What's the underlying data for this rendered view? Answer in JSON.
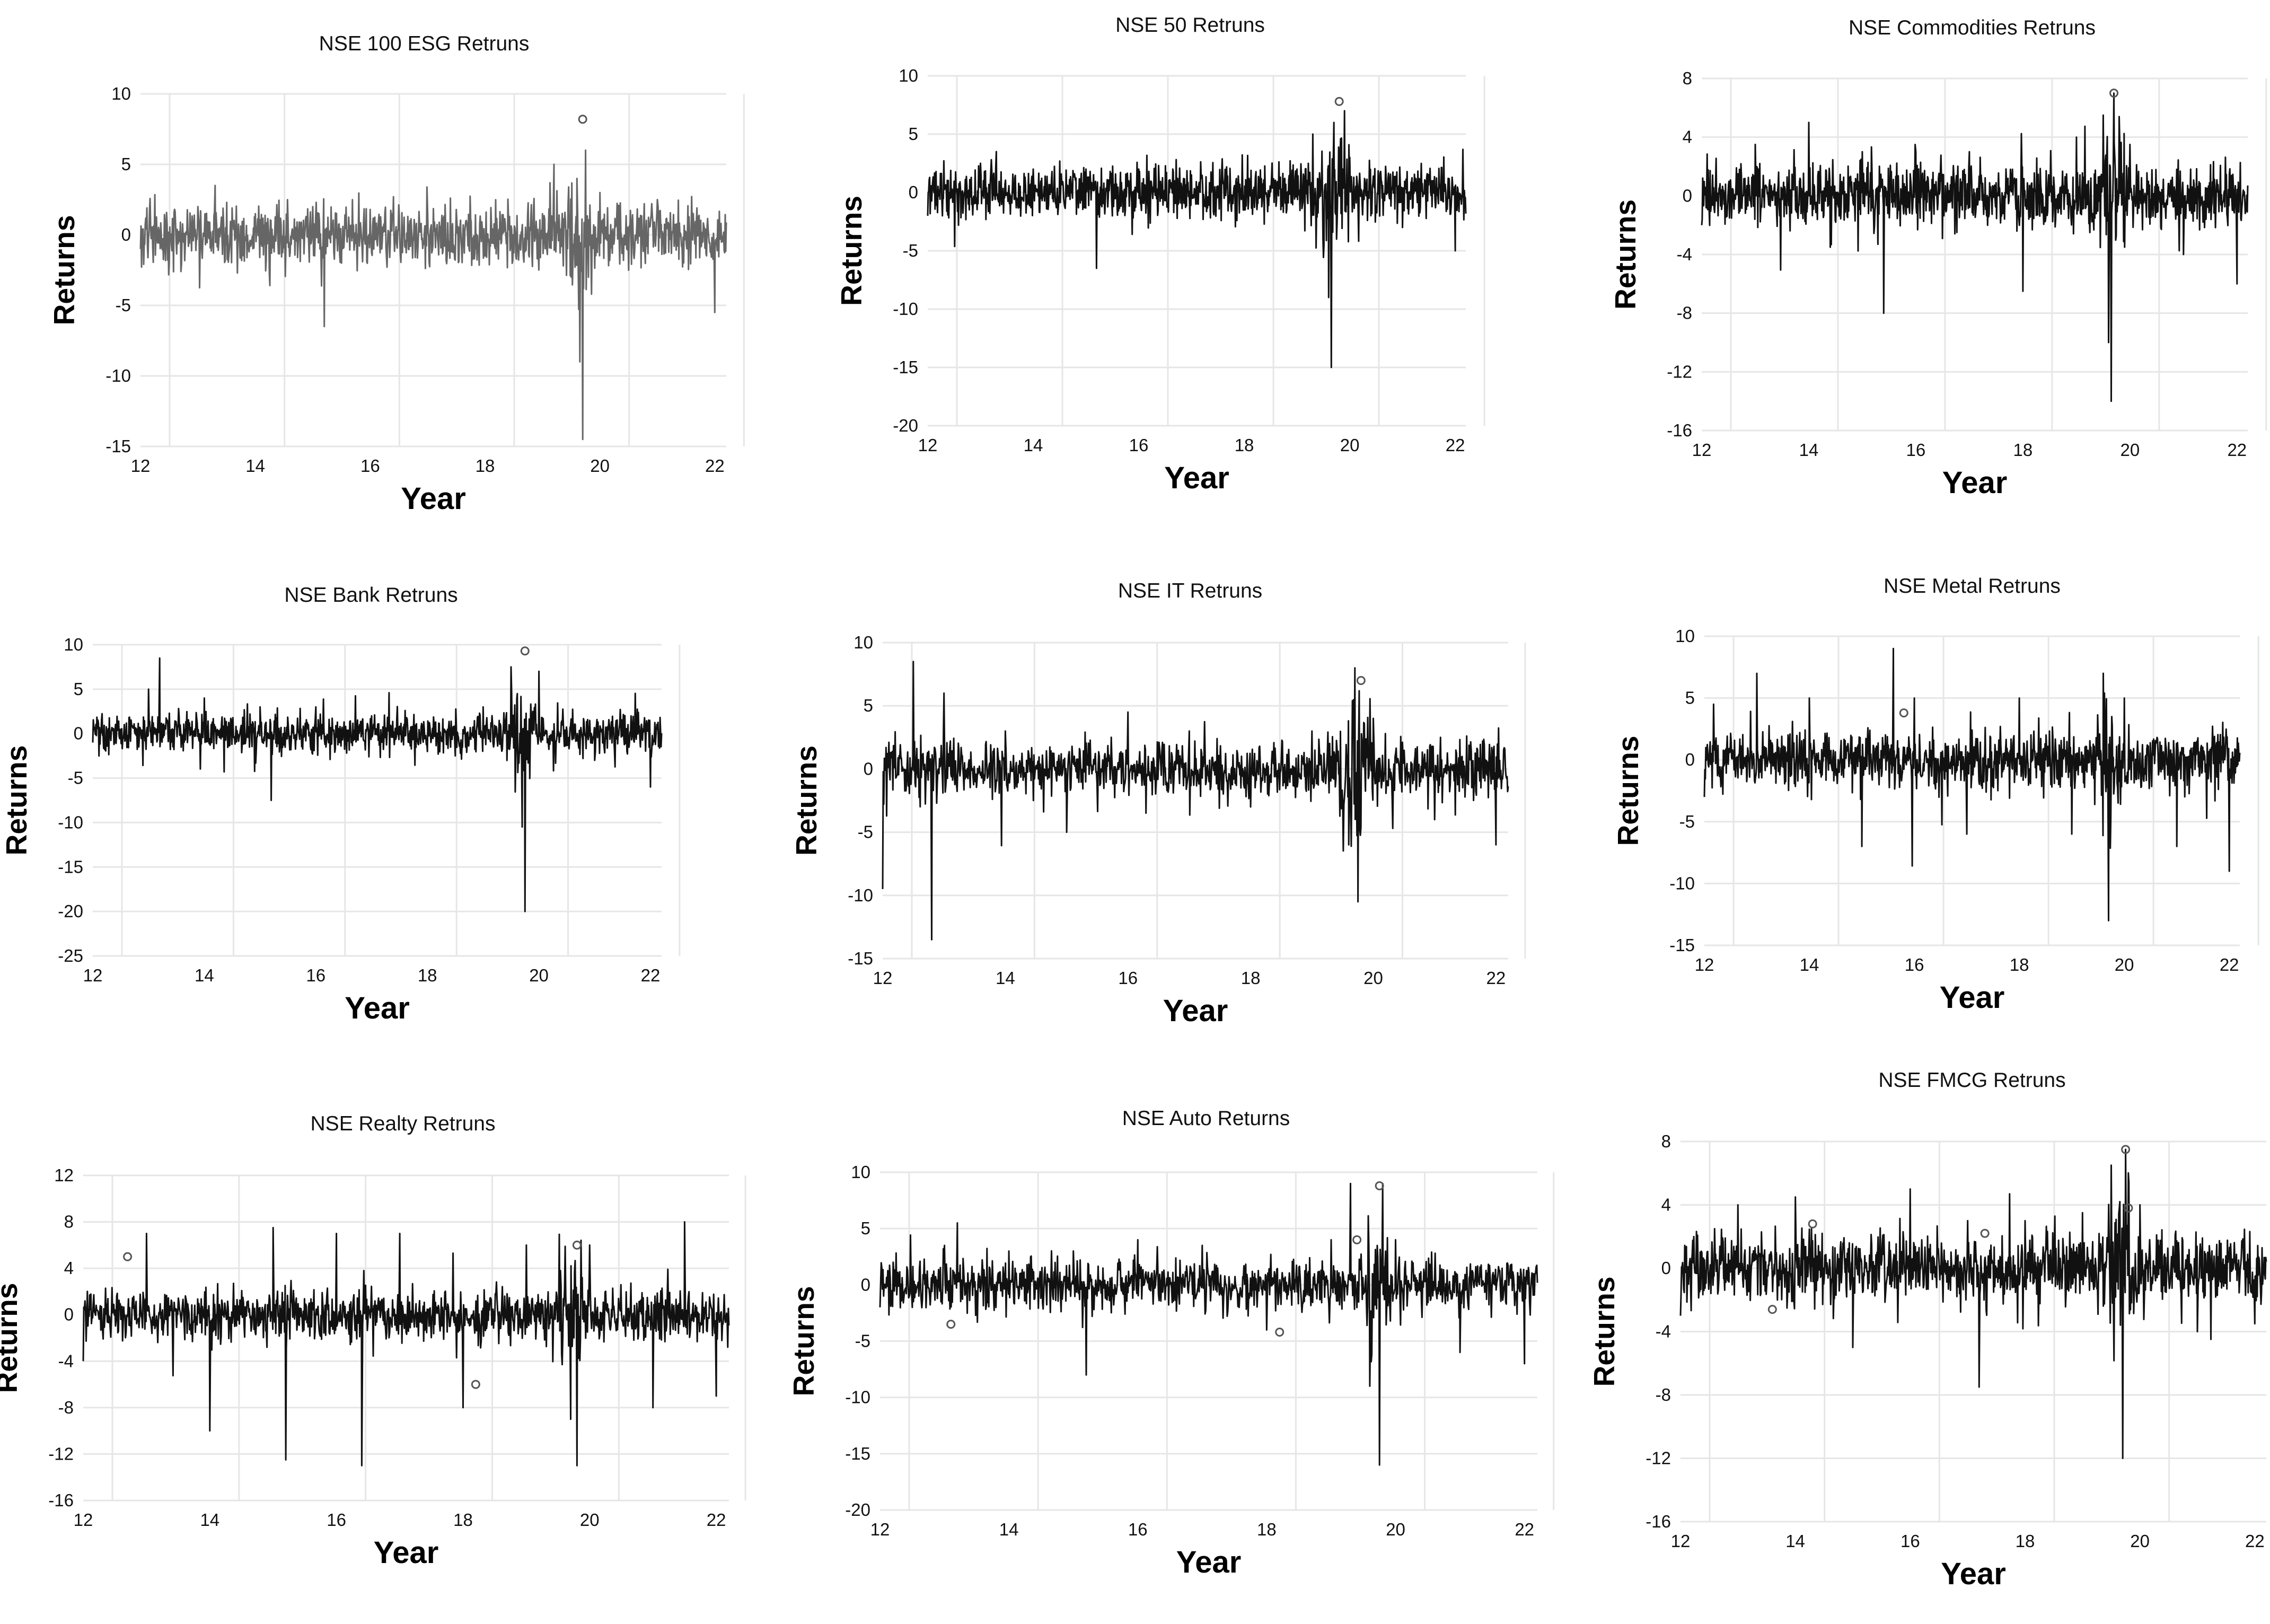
{
  "chart_data": [
    {
      "type": "line",
      "title": "NSE 100 ESG Retruns",
      "xlabel": "Year",
      "ylabel": "Returns",
      "x_ticks": [
        "12",
        "14",
        "16",
        "18",
        "20",
        "22"
      ],
      "y_ticks": [
        "10",
        "5",
        "0",
        "-5",
        "-10",
        "-15"
      ],
      "xlim": [
        12,
        22.2
      ],
      "ylim": [
        -15,
        10
      ],
      "grid": true,
      "line_color": "#666666",
      "series": [
        {
          "x": [
            12.0,
            13.0,
            13.3,
            14.0,
            15.0,
            15.2,
            15.5,
            16.0,
            17.0,
            18.0,
            19.0,
            19.2,
            19.5,
            19.6,
            19.65,
            19.7,
            19.75,
            19.8,
            20.0,
            20.5,
            21.0,
            22.0
          ],
          "y": [
            -1,
            2,
            3.5,
            1.5,
            2,
            -6.5,
            -2,
            1.8,
            1.5,
            -1.5,
            1.5,
            5,
            -3,
            4,
            -9,
            -14.5,
            6,
            -3,
            3,
            -2.5,
            2.5,
            -5.5
          ],
          "markers": [
            {
              "x": 19.7,
              "y": 8.2
            }
          ]
        }
      ]
    },
    {
      "type": "line",
      "title": "NSE 50 Retruns",
      "xlabel": "Year",
      "ylabel": "Returns",
      "x_ticks": [
        "12",
        "14",
        "16",
        "18",
        "20",
        "22"
      ],
      "y_ticks": [
        "10",
        "5",
        "0",
        "-5",
        "-10",
        "-15",
        "-20"
      ],
      "xlim": [
        12,
        22.2
      ],
      "ylim": [
        -20,
        10
      ],
      "grid": true,
      "line_color": "#111111",
      "series": [
        {
          "x": [
            12.0,
            13.0,
            13.3,
            14.0,
            15.0,
            15.2,
            15.5,
            16.0,
            17.0,
            18.0,
            19.0,
            19.3,
            19.6,
            19.65,
            19.7,
            19.75,
            20.0,
            21.0,
            22.0
          ],
          "y": [
            -2,
            2.5,
            3.5,
            2,
            2,
            -6.5,
            -2,
            2,
            1.5,
            -1.5,
            2,
            5,
            -9,
            -15,
            6,
            -4,
            3,
            -3,
            -5
          ],
          "markers": [
            {
              "x": 19.8,
              "y": 7.8
            }
          ]
        }
      ]
    },
    {
      "type": "line",
      "title": "NSE Commodities Retruns",
      "xlabel": "Year",
      "ylabel": "Returns",
      "x_ticks": [
        "12",
        "14",
        "16",
        "18",
        "20",
        "22"
      ],
      "y_ticks": [
        "8",
        "4",
        "0",
        "-4",
        "-8",
        "-12",
        "-16"
      ],
      "xlim": [
        12,
        22.2
      ],
      "ylim": [
        -16,
        8
      ],
      "grid": true,
      "line_color": "#111111",
      "series": [
        {
          "x": [
            12.0,
            13.0,
            14.0,
            15.0,
            15.4,
            16.0,
            17.0,
            18.0,
            19.0,
            19.5,
            19.6,
            19.65,
            19.7,
            20.0,
            21.0,
            22.0
          ],
          "y": [
            -2,
            3.5,
            5,
            3,
            -8,
            3,
            3,
            -6.5,
            4,
            5.5,
            -10,
            -14,
            7,
            3.5,
            -4,
            -6
          ],
          "markers": [
            {
              "x": 19.7,
              "y": 7
            }
          ]
        }
      ]
    },
    {
      "type": "line",
      "title": "NSE Bank Retruns",
      "xlabel": "Year",
      "ylabel": "Returns",
      "x_ticks": [
        "12",
        "14",
        "16",
        "18",
        "20",
        "22"
      ],
      "y_ticks": [
        "10",
        "5",
        "0",
        "-5",
        "-10",
        "-15",
        "-20",
        "-25"
      ],
      "xlim": [
        12,
        22.2
      ],
      "ylim": [
        -25,
        10
      ],
      "grid": true,
      "line_color": "#111111",
      "series": [
        {
          "x": [
            12.0,
            13.0,
            13.2,
            14.0,
            15.0,
            15.2,
            16.0,
            17.0,
            18.0,
            19.0,
            19.5,
            19.7,
            19.75,
            20.0,
            21.0,
            22.0
          ],
          "y": [
            -1,
            5,
            8.5,
            4,
            3,
            -7.5,
            3,
            2,
            -2,
            3,
            7.5,
            -10.5,
            -20,
            7,
            -3,
            -6
          ],
          "markers": [
            {
              "x": 19.75,
              "y": 9.3
            }
          ]
        }
      ]
    },
    {
      "type": "line",
      "title": "NSE IT Retruns",
      "xlabel": "Year",
      "ylabel": "Returns",
      "x_ticks": [
        "12",
        "14",
        "16",
        "18",
        "20",
        "22"
      ],
      "y_ticks": [
        "10",
        "5",
        "0",
        "-5",
        "-10",
        "-15"
      ],
      "xlim": [
        12,
        22.2
      ],
      "ylim": [
        -15,
        10
      ],
      "grid": true,
      "line_color": "#111111",
      "series": [
        {
          "x": [
            12.0,
            12.5,
            12.8,
            13.0,
            14.0,
            15.0,
            16.0,
            17.0,
            18.0,
            19.0,
            19.6,
            19.7,
            19.75,
            20.0,
            21.0,
            22.0
          ],
          "y": [
            -9.5,
            8.5,
            -13.5,
            6,
            3,
            -5,
            4.5,
            3,
            -3,
            3,
            -6,
            8,
            -10.5,
            4,
            -4,
            -6
          ],
          "markers": [
            {
              "x": 19.8,
              "y": 7
            }
          ]
        }
      ]
    },
    {
      "type": "line",
      "title": "NSE Metal Retruns",
      "xlabel": "Year",
      "ylabel": "Returns",
      "x_ticks": [
        "12",
        "14",
        "16",
        "18",
        "20",
        "22"
      ],
      "y_ticks": [
        "10",
        "5",
        "0",
        "-5",
        "-10",
        "-15"
      ],
      "xlim": [
        12,
        22.2
      ],
      "ylim": [
        -15,
        10
      ],
      "grid": true,
      "line_color": "#111111",
      "series": [
        {
          "x": [
            12.0,
            13.0,
            14.0,
            15.0,
            15.6,
            16.0,
            17.0,
            18.0,
            19.0,
            19.6,
            19.7,
            20.0,
            21.0,
            22.0
          ],
          "y": [
            -3,
            7,
            5,
            -7,
            9,
            5,
            -6,
            5,
            -6,
            7,
            -13,
            5,
            -7,
            -9
          ],
          "markers": [
            {
              "x": 15.8,
              "y": 3.8
            }
          ]
        }
      ]
    },
    {
      "type": "line",
      "title": "NSE Realty Retruns",
      "xlabel": "Year",
      "ylabel": "Returns",
      "x_ticks": [
        "12",
        "14",
        "16",
        "18",
        "20",
        "22"
      ],
      "y_ticks": [
        "12",
        "8",
        "4",
        "0",
        "-4",
        "-8",
        "-12",
        "-16"
      ],
      "xlim": [
        12,
        22.2
      ],
      "ylim": [
        -16,
        12
      ],
      "grid": true,
      "line_color": "#111111",
      "series": [
        {
          "x": [
            12.0,
            13.0,
            14.0,
            15.0,
            15.2,
            16.0,
            16.4,
            17.0,
            18.0,
            19.0,
            19.7,
            19.8,
            20.0,
            21.0,
            21.5,
            22.0
          ],
          "y": [
            -4,
            7,
            -10,
            7.5,
            -12.5,
            7,
            -13,
            7,
            -8,
            6,
            -9,
            -13,
            6,
            -8,
            8,
            -7
          ],
          "markers": [
            {
              "x": 12.7,
              "y": 5
            },
            {
              "x": 18.2,
              "y": -6
            },
            {
              "x": 19.8,
              "y": 6
            }
          ]
        }
      ]
    },
    {
      "type": "line",
      "title": "NSE Auto Returns",
      "xlabel": "Year",
      "ylabel": "Returns",
      "x_ticks": [
        "12",
        "14",
        "16",
        "18",
        "20",
        "22"
      ],
      "y_ticks": [
        "10",
        "5",
        "0",
        "-5",
        "-10",
        "-15",
        "-20"
      ],
      "xlim": [
        12,
        22.2
      ],
      "ylim": [
        -20,
        10
      ],
      "grid": true,
      "line_color": "#111111",
      "series": [
        {
          "x": [
            12.0,
            13.0,
            13.2,
            14.0,
            15.0,
            15.2,
            16.0,
            17.0,
            18.0,
            19.0,
            19.3,
            19.6,
            19.75,
            19.8,
            20.0,
            21.0,
            22.0
          ],
          "y": [
            -2,
            3.5,
            5.5,
            3,
            3,
            -8,
            4,
            3.5,
            -4,
            4,
            9,
            -9,
            -16,
            9,
            4,
            -6,
            -7
          ],
          "markers": [
            {
              "x": 13.1,
              "y": -3.5
            },
            {
              "x": 18.2,
              "y": -4.2
            },
            {
              "x": 19.4,
              "y": 4
            },
            {
              "x": 19.75,
              "y": 8.8
            }
          ]
        }
      ]
    },
    {
      "type": "line",
      "title": "NSE FMCG Retruns",
      "xlabel": "Year",
      "ylabel": "Returns",
      "x_ticks": [
        "12",
        "14",
        "16",
        "18",
        "20",
        "22"
      ],
      "y_ticks": [
        "8",
        "4",
        "0",
        "-4",
        "-8",
        "-12",
        "-16"
      ],
      "xlim": [
        12,
        22.2
      ],
      "ylim": [
        -16,
        8
      ],
      "grid": true,
      "line_color": "#111111",
      "series": [
        {
          "x": [
            12.0,
            13.0,
            14.0,
            15.0,
            16.0,
            17.0,
            17.2,
            18.0,
            19.0,
            19.5,
            19.7,
            19.75,
            20.0,
            21.0,
            22.0
          ],
          "y": [
            -3,
            4,
            4.5,
            -5,
            5,
            3,
            -7.5,
            3,
            3.5,
            6.5,
            -12,
            7.5,
            4,
            -4,
            -3.5
          ],
          "markers": [
            {
              "x": 13.6,
              "y": -2.6
            },
            {
              "x": 14.3,
              "y": 2.8
            },
            {
              "x": 17.3,
              "y": 2.2
            },
            {
              "x": 19.75,
              "y": 7.5
            },
            {
              "x": 19.8,
              "y": 3.8
            }
          ]
        }
      ]
    }
  ]
}
